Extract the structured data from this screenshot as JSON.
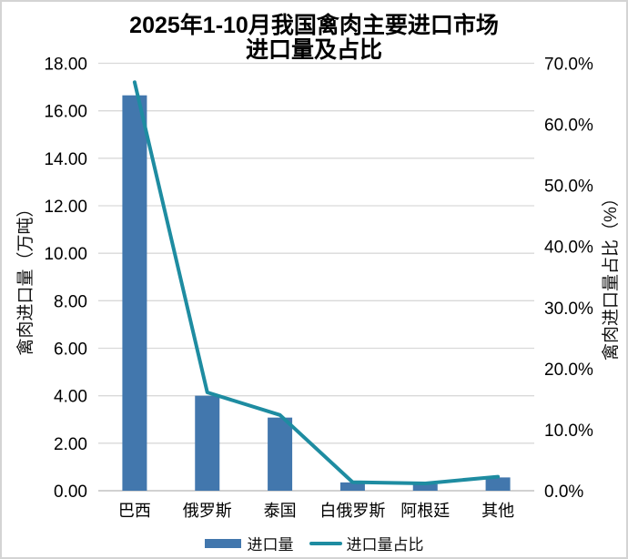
{
  "chart": {
    "title_line1": "2025年1-10月我国禽肉主要进口市场",
    "title_line2": "进口量及占比"
  },
  "axes": {
    "left_title": "禽肉进口量（万吨）",
    "right_title": "禽肉进口量占比（%）"
  },
  "legend": {
    "bar_label": "进口量",
    "line_label": "进口量占比"
  },
  "colors": {
    "bar": "#4277AD",
    "line": "#1E8CA1",
    "gridline": "#D9D9D9",
    "axis_line": "#C2C2C2",
    "text": "#000000"
  },
  "chart_data": {
    "type": "bar",
    "subtype": "combo bar + line, dual axis",
    "title": "2025年1-10月我国禽肉主要进口市场进口量及占比",
    "categories": [
      "巴西",
      "俄罗斯",
      "泰国",
      "白俄罗斯",
      "阿根廷",
      "其他"
    ],
    "series": [
      {
        "name": "进口量",
        "type": "bar",
        "axis": "left",
        "values": [
          16.65,
          4.0,
          3.08,
          0.35,
          0.28,
          0.56
        ]
      },
      {
        "name": "进口量占比",
        "type": "line",
        "axis": "right",
        "values": [
          66.9,
          16.1,
          12.4,
          1.4,
          1.2,
          2.3
        ]
      }
    ],
    "left_axis": {
      "label": "禽肉进口量（万吨）",
      "min": 0,
      "max": 18,
      "step": 2,
      "tick_format": "two-decimal"
    },
    "right_axis": {
      "label": "禽肉进口量占比（%）",
      "min": 0,
      "max": 70,
      "step": 10,
      "tick_format": "one-decimal-percent"
    },
    "grid": true,
    "legend_position": "bottom"
  }
}
